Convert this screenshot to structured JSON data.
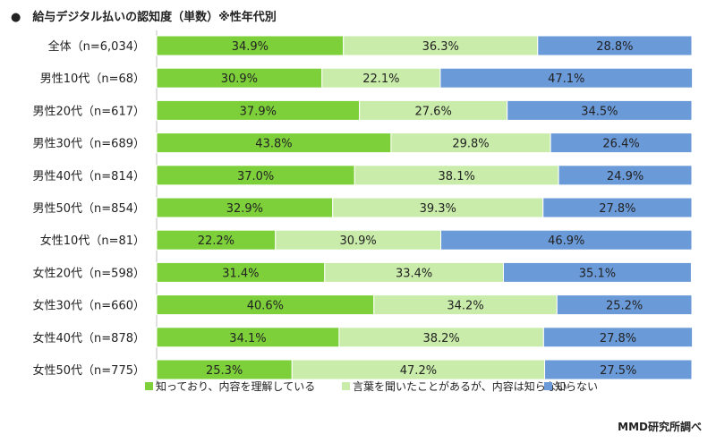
{
  "title": "●　給与デジタル払いの認知度（単数）※性年代別",
  "credit": "MMD研究所調べ",
  "chart_data": {
    "type": "bar",
    "orientation": "horizontal",
    "stacked": true,
    "normalized_100": true,
    "categories": [
      "全体（n=6,034）",
      "男性10代（n=68）",
      "男性20代（n=617）",
      "男性30代（n=689）",
      "男性40代（n=814）",
      "男性50代（n=854）",
      "女性10代（n=81）",
      "女性20代（n=598）",
      "女性30代（n=660）",
      "女性40代（n=878）",
      "女性50代（n=775）"
    ],
    "series": [
      {
        "name": "知っており、内容を理解している",
        "color": "#7ed03b",
        "values": [
          34.9,
          30.9,
          37.9,
          43.8,
          37.0,
          32.9,
          22.2,
          31.4,
          40.6,
          34.1,
          25.3
        ],
        "labels": [
          "34.9%",
          "30.9%",
          "37.9%",
          "43.8%",
          "37.0%",
          "32.9%",
          "22.2%",
          "31.4%",
          "40.6%",
          "34.1%",
          "25.3%"
        ]
      },
      {
        "name": "言葉を聞いたことがあるが、内容は知らない",
        "color": "#c9ecaa",
        "values": [
          36.3,
          22.1,
          27.6,
          29.8,
          38.1,
          39.3,
          30.9,
          33.4,
          34.2,
          38.2,
          47.2
        ],
        "labels": [
          "36.3%",
          "22.1%",
          "27.6%",
          "29.8%",
          "38.1%",
          "39.3%",
          "30.9%",
          "33.4%",
          "34.2%",
          "38.2%",
          "47.2%"
        ]
      },
      {
        "name": "知らない",
        "color": "#6b9ad8",
        "values": [
          28.8,
          47.1,
          34.5,
          26.4,
          24.9,
          27.8,
          46.9,
          35.1,
          25.2,
          27.8,
          27.5
        ],
        "labels": [
          "28.8%",
          "47.1%",
          "34.5%",
          "26.4%",
          "24.9%",
          "27.8%",
          "46.9%",
          "35.1%",
          "25.2%",
          "27.8%",
          "27.5%"
        ]
      }
    ],
    "xlim": [
      0,
      100
    ],
    "legend_position": "bottom"
  }
}
